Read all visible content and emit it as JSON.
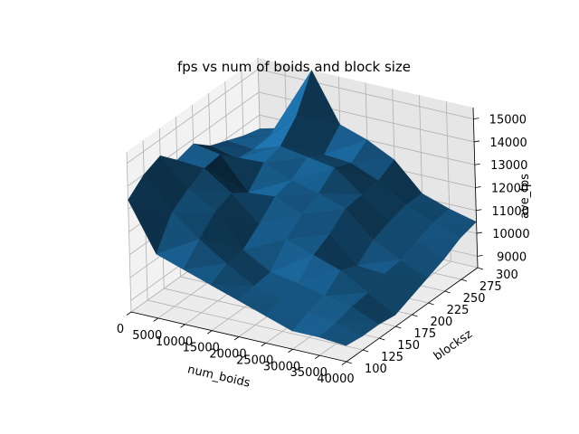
{
  "chart_data": {
    "type": "surface3d",
    "title": "fps vs num of boids and block size",
    "xlabel": "num_boids",
    "ylabel": "blocksz",
    "zlabel": "ave_fps",
    "xlim": [
      0,
      40000
    ],
    "ylim": [
      100,
      300
    ],
    "zlim": [
      8500,
      15500
    ],
    "x_ticks": [
      "0",
      "5000",
      "10000",
      "15000",
      "20000",
      "25000",
      "30000",
      "35000",
      "40000"
    ],
    "y_ticks": [
      "100",
      "125",
      "150",
      "175",
      "200",
      "225",
      "250",
      "275",
      "300"
    ],
    "z_ticks": [
      "9000",
      "10000",
      "11000",
      "12000",
      "13000",
      "14000",
      "15000"
    ],
    "grid": true,
    "color": "#1f77b4",
    "x": [
      0,
      5000,
      10000,
      15000,
      20000,
      25000,
      30000,
      35000,
      40000
    ],
    "y": [
      100,
      125,
      150,
      175,
      200,
      225,
      250,
      275,
      300
    ],
    "z": [
      [
        13400,
        11300,
        10900,
        10500,
        10100,
        9700,
        9300,
        9300,
        9200
      ],
      [
        14000,
        12600,
        11700,
        10900,
        10200,
        9900,
        9600,
        9400,
        9100
      ],
      [
        14300,
        13100,
        12400,
        11000,
        10300,
        10100,
        9800,
        9600,
        9100
      ],
      [
        13600,
        13500,
        12700,
        11600,
        11200,
        10800,
        10400,
        9700,
        9000
      ],
      [
        13800,
        13600,
        12200,
        12300,
        11800,
        11200,
        10100,
        10000,
        9300
      ],
      [
        13200,
        12900,
        13000,
        12500,
        12200,
        11800,
        10700,
        10100,
        9600
      ],
      [
        12900,
        12800,
        13200,
        13000,
        12800,
        11900,
        11000,
        10400,
        9900
      ],
      [
        12600,
        12900,
        14000,
        12600,
        12500,
        12000,
        11200,
        10700,
        10300
      ],
      [
        12400,
        12700,
        15500,
        13400,
        13000,
        12400,
        11200,
        10800,
        10500
      ]
    ]
  }
}
